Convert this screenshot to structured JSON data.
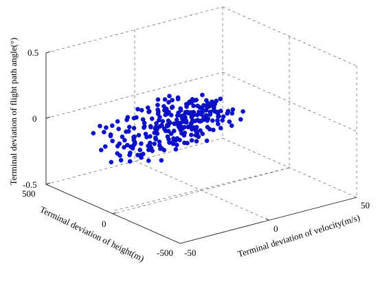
{
  "chart_data": {
    "type": "scatter",
    "title": "",
    "xlabel": "Terminal deviation of velocity(m/s)",
    "ylabel": "Terminal deviation of height(m)",
    "zlabel": "Terminal deviation of flight path angle(°)",
    "xlim": [
      -50,
      50
    ],
    "ylim": [
      -500,
      500
    ],
    "zlim": [
      -0.5,
      0.5
    ],
    "xticks": [
      "-50",
      "0",
      "50"
    ],
    "yticks": [
      "500",
      "0",
      "-500"
    ],
    "zticks": [
      "0.5",
      "0",
      "-0.5"
    ],
    "grid": true,
    "color": "#0a10d6",
    "points": [
      [
        -44,
        28,
        -0.09
      ],
      [
        -42,
        58,
        -0.02
      ],
      [
        -39,
        63,
        -0.06
      ],
      [
        -34,
        94,
        0.03
      ],
      [
        -30,
        54,
        -0.06
      ],
      [
        -27,
        52,
        -0.02
      ],
      [
        -27,
        79,
        -0.16
      ],
      [
        -25,
        21,
        0.02
      ],
      [
        -23,
        94,
        -0.12
      ],
      [
        -22,
        23,
        -0.06
      ],
      [
        -19,
        100,
        -0.12
      ],
      [
        -16,
        41,
        -0.05
      ],
      [
        -15,
        57,
        0.02
      ],
      [
        -12,
        118,
        -0.04
      ],
      [
        -12,
        163,
        0.07
      ],
      [
        -10,
        115,
        -0.02
      ],
      [
        -9,
        89,
        -0.11
      ],
      [
        -8,
        56,
        -0.11
      ],
      [
        -7,
        112,
        -0.07
      ],
      [
        -6,
        60,
        -0.03
      ],
      [
        -5,
        91,
        -0.03
      ],
      [
        -4,
        101,
        -0.07
      ],
      [
        -3,
        36,
        -0.08
      ],
      [
        -2,
        123,
        0.02
      ],
      [
        -1,
        86,
        -0.05
      ],
      [
        0,
        131,
        0.01
      ],
      [
        1,
        55,
        -0.06
      ],
      [
        2,
        117,
        -0.07
      ],
      [
        3,
        135,
        0.02
      ],
      [
        4,
        129,
        -0.06
      ],
      [
        5,
        106,
        -0.11
      ],
      [
        6,
        106,
        -0.03
      ],
      [
        7,
        149,
        -0.11
      ],
      [
        8,
        113,
        -0.12
      ],
      [
        9,
        100,
        -0.03
      ],
      [
        10,
        150,
        -0.07
      ],
      [
        11,
        123,
        -0.05
      ],
      [
        12,
        135,
        -0.04
      ],
      [
        13,
        174,
        -0.04
      ],
      [
        14,
        135,
        -0.06
      ],
      [
        15,
        193,
        -0.01
      ],
      [
        16,
        144,
        -0.02
      ],
      [
        17,
        159,
        -0.05
      ],
      [
        18,
        138,
        -0.02
      ],
      [
        19,
        184,
        -0.06
      ],
      [
        20,
        144,
        -0.04
      ],
      [
        21,
        183,
        -0.04
      ],
      [
        22,
        196,
        -0.03
      ],
      [
        23,
        180,
        -0.07
      ],
      [
        24,
        225,
        -0.05
      ],
      [
        25,
        199,
        -0.11
      ],
      [
        26,
        242,
        -0.04
      ],
      [
        27,
        235,
        -0.1
      ],
      [
        28,
        258,
        -0.03
      ],
      [
        29,
        240,
        -0.01
      ],
      [
        30,
        251,
        -0.11
      ],
      [
        -44,
        137,
        -0.07
      ],
      [
        -41,
        59,
        -0.15
      ],
      [
        -36,
        57,
        -0.11
      ],
      [
        -33,
        92,
        -0.09
      ],
      [
        -31,
        153,
        -0.01
      ],
      [
        -28,
        127,
        -0.1
      ],
      [
        -26,
        51,
        -0.12
      ],
      [
        -22,
        93,
        -0.1
      ],
      [
        -20,
        115,
        0.01
      ],
      [
        -18,
        103,
        -0.09
      ],
      [
        -16,
        100,
        0.0
      ],
      [
        -14,
        144,
        -0.08
      ],
      [
        -11,
        48,
        -0.1
      ],
      [
        -10,
        165,
        -0.04
      ],
      [
        -8,
        140,
        -0.08
      ],
      [
        -7,
        141,
        -0.02
      ],
      [
        -5,
        104,
        -0.04
      ],
      [
        -4,
        109,
        -0.06
      ],
      [
        -3,
        108,
        -0.1
      ],
      [
        -2,
        175,
        -0.06
      ],
      [
        -1,
        98,
        -0.02
      ],
      [
        0,
        138,
        -0.01
      ],
      [
        2,
        177,
        -0.1
      ],
      [
        3,
        166,
        -0.1
      ],
      [
        4,
        183,
        -0.07
      ],
      [
        5,
        138,
        -0.02
      ],
      [
        6,
        200,
        -0.05
      ],
      [
        7,
        154,
        -0.02
      ],
      [
        8,
        177,
        -0.09
      ],
      [
        9,
        127,
        -0.06
      ],
      [
        10,
        206,
        -0.05
      ],
      [
        11,
        212,
        -0.1
      ],
      [
        12,
        189,
        -0.05
      ],
      [
        13,
        190,
        -0.03
      ],
      [
        14,
        244,
        -0.06
      ],
      [
        15,
        189,
        -0.04
      ],
      [
        16,
        268,
        -0.08
      ],
      [
        17,
        238,
        -0.03
      ],
      [
        18,
        202,
        -0.08
      ],
      [
        19,
        214,
        -0.05
      ],
      [
        20,
        246,
        -0.12
      ],
      [
        21,
        260,
        -0.04
      ],
      [
        22,
        242,
        -0.03
      ],
      [
        23,
        297,
        -0.09
      ],
      [
        24,
        260,
        -0.06
      ],
      [
        25,
        286,
        -0.08
      ],
      [
        26,
        305,
        -0.04
      ],
      [
        27,
        282,
        -0.07
      ],
      [
        28,
        331,
        -0.1
      ],
      [
        29,
        303,
        -0.06
      ],
      [
        -42,
        123,
        0.02
      ],
      [
        -38,
        35,
        -0.11
      ],
      [
        -35,
        91,
        -0.07
      ],
      [
        -32,
        75,
        -0.05
      ],
      [
        -29,
        117,
        -0.04
      ],
      [
        -27,
        102,
        -0.14
      ],
      [
        -24,
        151,
        -0.06
      ],
      [
        -21,
        106,
        -0.06
      ],
      [
        -19,
        174,
        -0.02
      ],
      [
        -17,
        118,
        -0.09
      ],
      [
        -15,
        147,
        -0.04
      ],
      [
        -13,
        160,
        -0.06
      ],
      [
        -11,
        121,
        -0.06
      ],
      [
        -9,
        198,
        -0.02
      ],
      [
        -8,
        189,
        -0.06
      ],
      [
        -6,
        146,
        -0.11
      ],
      [
        -5,
        187,
        0.02
      ],
      [
        -4,
        194,
        -0.04
      ],
      [
        -2,
        229,
        0.0
      ],
      [
        -1,
        169,
        -0.06
      ],
      [
        0,
        199,
        -0.08
      ],
      [
        1,
        257,
        -0.02
      ],
      [
        2,
        180,
        -0.07
      ],
      [
        3,
        223,
        -0.07
      ],
      [
        4,
        228,
        -0.1
      ],
      [
        5,
        237,
        -0.03
      ],
      [
        6,
        222,
        -0.07
      ],
      [
        7,
        248,
        -0.01
      ],
      [
        8,
        218,
        -0.03
      ],
      [
        9,
        237,
        -0.04
      ],
      [
        10,
        246,
        -0.11
      ],
      [
        11,
        298,
        -0.06
      ],
      [
        12,
        292,
        -0.1
      ],
      [
        13,
        276,
        -0.07
      ],
      [
        14,
        281,
        -0.01
      ],
      [
        15,
        265,
        -0.09
      ],
      [
        16,
        321,
        -0.06
      ],
      [
        17,
        283,
        -0.04
      ],
      [
        18,
        319,
        -0.11
      ],
      [
        19,
        362,
        -0.07
      ],
      [
        20,
        352,
        -0.05
      ],
      [
        22,
        365,
        -0.07
      ],
      [
        24,
        384,
        -0.06
      ],
      [
        26,
        394,
        -0.08
      ],
      [
        28,
        407,
        -0.09
      ],
      [
        30,
        388,
        -0.05
      ],
      [
        -43,
        181,
        -0.12
      ],
      [
        -40,
        150,
        -0.01
      ],
      [
        -37,
        176,
        -0.07
      ],
      [
        -34,
        177,
        -0.12
      ],
      [
        -31,
        164,
        -0.08
      ],
      [
        -28,
        221,
        -0.09
      ],
      [
        -25,
        208,
        -0.02
      ],
      [
        -22,
        215,
        -0.11
      ],
      [
        -20,
        239,
        -0.06
      ],
      [
        -18,
        248,
        0.01
      ],
      [
        -15,
        231,
        -0.07
      ],
      [
        -13,
        264,
        -0.03
      ],
      [
        -11,
        280,
        -0.07
      ],
      [
        -9,
        259,
        -0.1
      ],
      [
        -7,
        300,
        -0.01
      ],
      [
        -6,
        289,
        -0.06
      ],
      [
        -4,
        283,
        -0.1
      ],
      [
        -3,
        270,
        -0.05
      ],
      [
        -1,
        312,
        -0.02
      ],
      [
        0,
        323,
        -0.06
      ],
      [
        1,
        302,
        -0.11
      ],
      [
        3,
        315,
        -0.04
      ],
      [
        4,
        321,
        -0.08
      ],
      [
        5,
        346,
        -0.03
      ],
      [
        7,
        353,
        -0.06
      ],
      [
        8,
        330,
        -0.1
      ],
      [
        10,
        376,
        -0.03
      ],
      [
        11,
        365,
        -0.07
      ],
      [
        13,
        389,
        -0.03
      ],
      [
        14,
        400,
        -0.09
      ],
      [
        16,
        385,
        -0.02
      ],
      [
        18,
        411,
        -0.05
      ],
      [
        -44,
        -47,
        -0.1
      ],
      [
        -41,
        -28,
        -0.02
      ],
      [
        -38,
        -52,
        -0.09
      ],
      [
        -35,
        -10,
        -0.1
      ],
      [
        -32,
        -38,
        -0.03
      ],
      [
        -29,
        -8,
        -0.07
      ],
      [
        -26,
        -31,
        -0.05
      ],
      [
        -23,
        3,
        -0.1
      ],
      [
        -20,
        -20,
        -0.03
      ],
      [
        -17,
        15,
        -0.08
      ],
      [
        -14,
        -4,
        -0.05
      ],
      [
        -12,
        25,
        -0.12
      ],
      [
        -9,
        6,
        -0.03
      ],
      [
        -7,
        37,
        -0.07
      ],
      [
        -4,
        19,
        -0.11
      ],
      [
        -2,
        48,
        -0.03
      ],
      [
        0,
        31,
        -0.08
      ],
      [
        2,
        62,
        -0.05
      ],
      [
        4,
        44,
        -0.1
      ],
      [
        6,
        75,
        -0.02
      ],
      [
        8,
        60,
        -0.07
      ],
      [
        10,
        88,
        -0.04
      ],
      [
        12,
        69,
        -0.11
      ],
      [
        14,
        101,
        -0.06
      ],
      [
        16,
        86,
        -0.03
      ],
      [
        18,
        117,
        -0.08
      ],
      [
        20,
        99,
        -0.05
      ],
      [
        22,
        133,
        -0.1
      ],
      [
        24,
        117,
        -0.03
      ],
      [
        26,
        150,
        -0.07
      ],
      [
        28,
        134,
        -0.04
      ],
      [
        30,
        166,
        -0.09
      ],
      [
        -39,
        -120,
        -0.08
      ],
      [
        -35,
        -95,
        -0.03
      ],
      [
        -31,
        -110,
        -0.11
      ],
      [
        -27,
        -78,
        -0.06
      ],
      [
        -23,
        -92,
        -0.02
      ],
      [
        -19,
        -60,
        -0.09
      ],
      [
        -15,
        -71,
        -0.05
      ],
      [
        -11,
        -40,
        -0.08
      ],
      [
        -7,
        -50,
        -0.03
      ],
      [
        -3,
        -18,
        -0.07
      ],
      [
        1,
        -28,
        -0.11
      ],
      [
        5,
        4,
        -0.05
      ],
      [
        9,
        -6,
        -0.02
      ],
      [
        13,
        27,
        -0.08
      ],
      [
        17,
        15,
        -0.04
      ],
      [
        21,
        50,
        -0.1
      ],
      [
        25,
        36,
        -0.06
      ],
      [
        29,
        72,
        -0.03
      ],
      [
        -40,
        230,
        0.03
      ],
      [
        -36,
        252,
        -0.04
      ],
      [
        -30,
        270,
        -0.02
      ],
      [
        -24,
        301,
        -0.08
      ],
      [
        -18,
        319,
        -0.04
      ],
      [
        -12,
        345,
        -0.06
      ],
      [
        -6,
        366,
        -0.03
      ],
      [
        0,
        388,
        -0.07
      ],
      [
        6,
        405,
        -0.05
      ],
      [
        12,
        430,
        -0.04
      ],
      [
        -45,
        80,
        -0.16
      ],
      [
        -40,
        100,
        -0.12
      ],
      [
        -33,
        40,
        -0.13
      ],
      [
        -26,
        160,
        -0.13
      ],
      [
        -18,
        60,
        -0.14
      ],
      [
        -10,
        80,
        -0.13
      ],
      [
        -2,
        10,
        -0.12
      ],
      [
        6,
        150,
        -0.12
      ],
      [
        14,
        230,
        -0.12
      ],
      [
        22,
        300,
        -0.12
      ],
      [
        -46,
        200,
        0.01
      ],
      [
        -38,
        210,
        0.02
      ],
      [
        -30,
        230,
        0.03
      ],
      [
        -22,
        260,
        0.02
      ],
      [
        -14,
        290,
        0.04
      ],
      [
        -6,
        320,
        0.01
      ],
      [
        2,
        350,
        0.03
      ],
      [
        10,
        370,
        0.02
      ],
      [
        -37,
        17,
        0.01
      ],
      [
        -29,
        33,
        0.02
      ],
      [
        -21,
        63,
        0.03
      ],
      [
        -13,
        83,
        0.01
      ],
      [
        -5,
        113,
        0.04
      ],
      [
        3,
        143,
        0.02
      ],
      [
        11,
        173,
        0.03
      ],
      [
        19,
        203,
        0.01
      ]
    ]
  }
}
